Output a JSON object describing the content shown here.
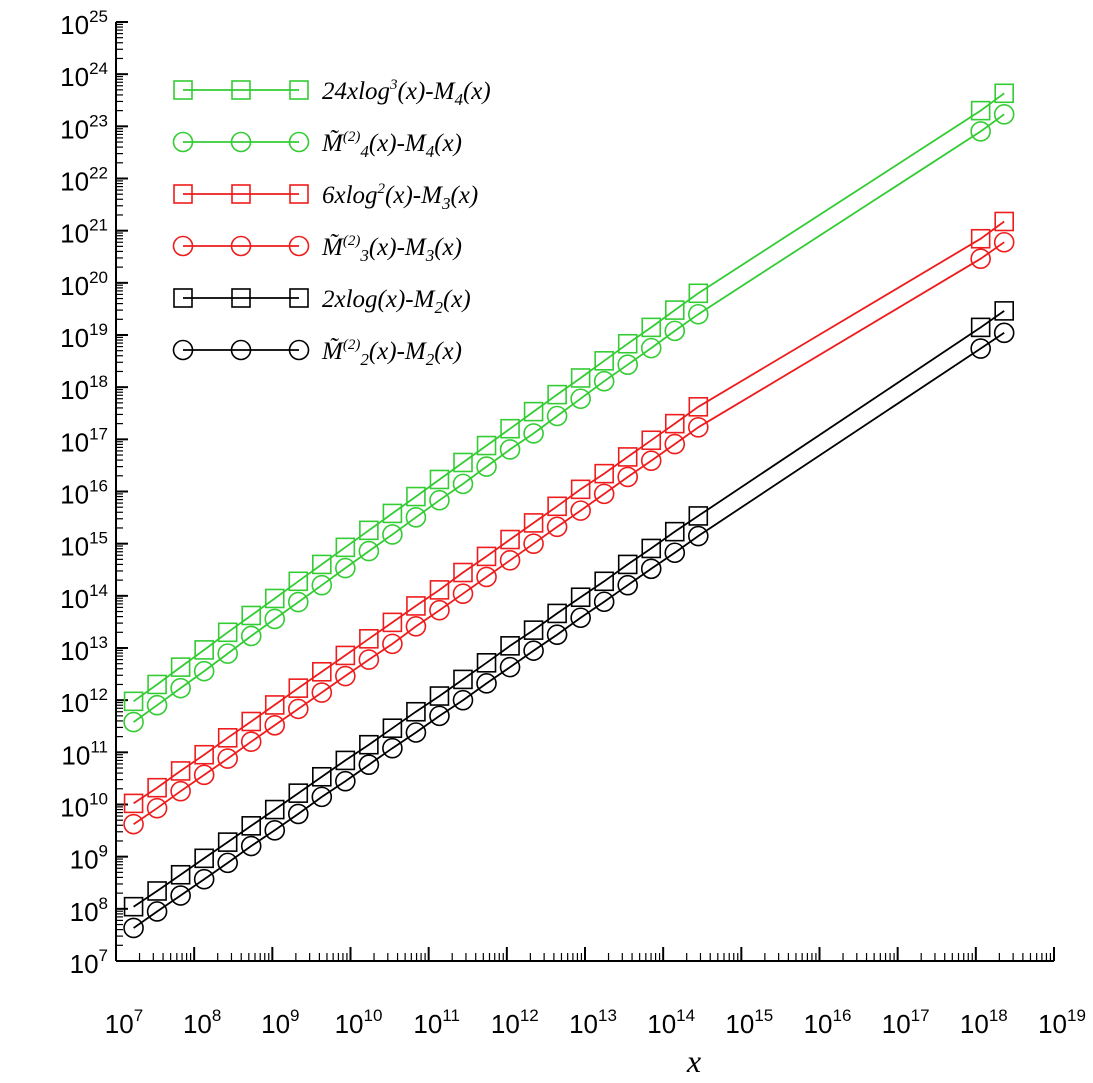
{
  "chart_data": {
    "type": "line",
    "x_scale": "log",
    "y_scale": "log",
    "xlabel": "x",
    "ylabel": "",
    "xlim": [
      10000000,
      1e+19
    ],
    "ylim": [
      10000000,
      1e+25
    ],
    "x_tick_labels": [
      {
        "base": "10",
        "exp": "7"
      },
      {
        "base": "10",
        "exp": "8"
      },
      {
        "base": "10",
        "exp": "9"
      },
      {
        "base": "10",
        "exp": "10"
      },
      {
        "base": "10",
        "exp": "11"
      },
      {
        "base": "10",
        "exp": "12"
      },
      {
        "base": "10",
        "exp": "13"
      },
      {
        "base": "10",
        "exp": "14"
      },
      {
        "base": "10",
        "exp": "15"
      },
      {
        "base": "10",
        "exp": "16"
      },
      {
        "base": "10",
        "exp": "17"
      },
      {
        "base": "10",
        "exp": "18"
      },
      {
        "base": "10",
        "exp": "19"
      }
    ],
    "y_tick_labels": [
      {
        "base": "10",
        "exp": "7"
      },
      {
        "base": "10",
        "exp": "8"
      },
      {
        "base": "10",
        "exp": "9"
      },
      {
        "base": "10",
        "exp": "10"
      },
      {
        "base": "10",
        "exp": "11"
      },
      {
        "base": "10",
        "exp": "12"
      },
      {
        "base": "10",
        "exp": "13"
      },
      {
        "base": "10",
        "exp": "14"
      },
      {
        "base": "10",
        "exp": "15"
      },
      {
        "base": "10",
        "exp": "16"
      },
      {
        "base": "10",
        "exp": "17"
      },
      {
        "base": "10",
        "exp": "18"
      },
      {
        "base": "10",
        "exp": "19"
      },
      {
        "base": "10",
        "exp": "20"
      },
      {
        "base": "10",
        "exp": "21"
      },
      {
        "base": "10",
        "exp": "22"
      },
      {
        "base": "10",
        "exp": "23"
      },
      {
        "base": "10",
        "exp": "24"
      },
      {
        "base": "10",
        "exp": "25"
      }
    ],
    "grid": false,
    "legend_position": "top-left",
    "x": [
      16777216,
      33554432,
      67108864,
      134217728,
      268435456,
      536870912,
      1073741824,
      2147483648,
      4294967296,
      8589934592,
      17179869184,
      34359738368,
      68719476736,
      137438953472,
      274877906944,
      549755813888,
      1099511627776,
      2199023255552,
      4398046511104,
      8796093022208,
      17592186044416,
      35184372088832,
      70368744177664,
      140737488355328,
      281474976710656,
      1.152921504606847e+18,
      2.305843009213694e+18
    ],
    "series": [
      {
        "legend": [
          {
            "t": "24xlog"
          },
          {
            "t": "3",
            "sup": true
          },
          {
            "t": "(x)-M"
          },
          {
            "t": "4",
            "sub": true
          },
          {
            "t": "(x)"
          }
        ],
        "color": "#33cc33",
        "marker": "square",
        "values": [
          950000000000.0,
          2000000000000.0,
          4300000000000.0,
          9200000000000.0,
          20000000000000.0,
          42000000000000.0,
          89000000000000.0,
          190000000000000.0,
          400000000000000.0,
          850000000000000.0,
          1800000000000000.0,
          3800000000000000.0,
          8000000000000000.0,
          1.7e+16,
          3.6e+16,
          7.6e+16,
          1.6e+17,
          3.4e+17,
          7.2e+17,
          1.5e+18,
          3.2e+18,
          6.8e+18,
          1.4e+19,
          3e+19,
          6.3e+19,
          2e+23,
          4.3e+23
        ]
      },
      {
        "legend": [
          {
            "t": "M̃"
          },
          {
            "t": "(2)",
            "sup": true
          },
          {
            "t": "4",
            "sub": true
          },
          {
            "t": "(x)-M"
          },
          {
            "t": "4",
            "sub": true
          },
          {
            "t": "(x)"
          }
        ],
        "color": "#33cc33",
        "marker": "circle",
        "values": [
          380000000000.0,
          800000000000.0,
          1700000000000.0,
          3600000000000.0,
          7800000000000.0,
          17000000000000.0,
          36000000000000.0,
          76000000000000.0,
          160000000000000.0,
          340000000000000.0,
          720000000000000.0,
          1500000000000000.0,
          3200000000000000.0,
          6800000000000000.0,
          1.4e+16,
          3e+16,
          6.4e+16,
          1.3e+17,
          2.8e+17,
          6e+17,
          1.3e+18,
          2.7e+18,
          5.6e+18,
          1.2e+19,
          2.5e+19,
          8e+22,
          1.7e+23
        ]
      },
      {
        "legend": [
          {
            "t": "6xlog"
          },
          {
            "t": "2",
            "sup": true
          },
          {
            "t": "(x)-M"
          },
          {
            "t": "3",
            "sub": true
          },
          {
            "t": "(x)"
          }
        ],
        "color": "#ee1c1c",
        "marker": "square",
        "values": [
          10500000000.0,
          21000000000.0,
          44000000000.0,
          90000000000.0,
          190000000000.0,
          390000000000.0,
          810000000000.0,
          1700000000000.0,
          3500000000000.0,
          7200000000000.0,
          15000000000000.0,
          31000000000000.0,
          64000000000000.0,
          130000000000000.0,
          280000000000000.0,
          570000000000000.0,
          1200000000000000.0,
          2500000000000000.0,
          5200000000000000.0,
          1.1e+16,
          2.2e+16,
          4.6e+16,
          9.6e+16,
          2e+17,
          4.2e+17,
          7e+20,
          1.5e+21
        ]
      },
      {
        "legend": [
          {
            "t": "M̃"
          },
          {
            "t": "(2)",
            "sup": true
          },
          {
            "t": "3",
            "sub": true
          },
          {
            "t": "(x)-M"
          },
          {
            "t": "3",
            "sub": true
          },
          {
            "t": "(x)"
          }
        ],
        "color": "#ee1c1c",
        "marker": "circle",
        "values": [
          4200000000.0,
          8500000000.0,
          18000000000.0,
          37000000000.0,
          76000000000.0,
          160000000000.0,
          330000000000.0,
          680000000000.0,
          1400000000000.0,
          2900000000000.0,
          6000000000000.0,
          12000000000000.0,
          26000000000000.0,
          53000000000000.0,
          110000000000000.0,
          230000000000000.0,
          480000000000000.0,
          1000000000000000.0,
          2100000000000000.0,
          4300000000000000.0,
          9000000000000000.0,
          1.9e+16,
          3.9e+16,
          8.1e+16,
          1.7e+17,
          2.9e+20,
          6e+20
        ]
      },
      {
        "legend": [
          {
            "t": "2xlog(x)-M"
          },
          {
            "t": "2",
            "sub": true
          },
          {
            "t": "(x)"
          }
        ],
        "color": "#000000",
        "marker": "square",
        "values": [
          110000000.0,
          220000000.0,
          450000000.0,
          930000000.0,
          1900000000.0,
          3900000000.0,
          8000000000.0,
          16500000000.0,
          34000000000.0,
          70000000000.0,
          140000000000.0,
          290000000000.0,
          600000000000.0,
          1200000000000.0,
          2500000000000.0,
          5200000000000.0,
          11000000000000.0,
          22000000000000.0,
          46000000000000.0,
          94000000000000.0,
          190000000000000.0,
          400000000000000.0,
          810000000000000.0,
          1700000000000000.0,
          3400000000000000.0,
          1.4e+19,
          2.9e+19
        ]
      },
      {
        "legend": [
          {
            "t": "M̃"
          },
          {
            "t": "(2)",
            "sup": true
          },
          {
            "t": "2",
            "sub": true
          },
          {
            "t": "(x)-M"
          },
          {
            "t": "2",
            "sub": true
          },
          {
            "t": "(x)"
          }
        ],
        "color": "#000000",
        "marker": "circle",
        "values": [
          43000000.0,
          89000000.0,
          180000000.0,
          370000000.0,
          760000000.0,
          1600000000.0,
          3200000000.0,
          6600000000.0,
          14000000000.0,
          28000000000.0,
          58000000000.0,
          120000000000.0,
          240000000000.0,
          500000000000.0,
          1000000000000.0,
          2100000000000.0,
          4300000000000.0,
          8900000000000.0,
          18000000000000.0,
          38000000000000.0,
          77000000000000.0,
          160000000000000.0,
          330000000000000.0,
          670000000000000.0,
          1400000000000000.0,
          5.5e+18,
          1.1e+19
        ]
      }
    ]
  }
}
